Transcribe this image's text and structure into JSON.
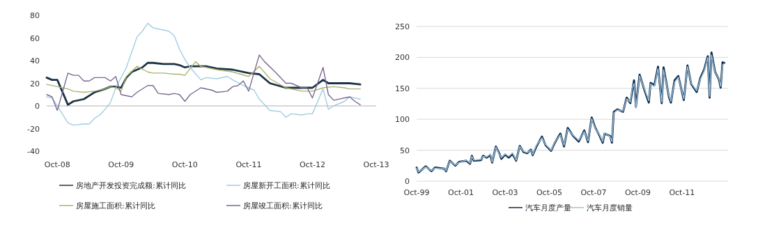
{
  "chart_data": [
    {
      "type": "line",
      "legend": "bottom",
      "xlim": [
        "2008-08",
        "2013-10"
      ],
      "ylim": [
        -40,
        80
      ],
      "yticks": [
        -40,
        -20,
        0,
        20,
        40,
        60,
        80
      ],
      "xticks": [
        {
          "value": "2008-10",
          "label": "Oct-08"
        },
        {
          "value": "2009-10",
          "label": "Oct-09"
        },
        {
          "value": "2010-10",
          "label": "Oct-10"
        },
        {
          "value": "2011-10",
          "label": "Oct-11"
        },
        {
          "value": "2012-10",
          "label": "Oct-12"
        },
        {
          "value": "2013-10",
          "label": "Oct-13"
        }
      ],
      "ref_lines": [
        {
          "axis": "y",
          "value": 0,
          "color": "#b0b0b0"
        }
      ],
      "series": [
        {
          "name": "房地产开发投资完成额:累计同比",
          "color": "#1c3344",
          "x": [
            "2008-08",
            "2008-09",
            "2008-10",
            "2008-12",
            "2009-01",
            "2009-03",
            "2009-04",
            "2009-05",
            "2009-07",
            "2009-08",
            "2009-09",
            "2009-10",
            "2009-11",
            "2009-12",
            "2010-02",
            "2010-03",
            "2010-04",
            "2010-06",
            "2010-08",
            "2010-09",
            "2010-10",
            "2010-11",
            "2011-02",
            "2011-04",
            "2011-07",
            "2011-10",
            "2011-12",
            "2012-02",
            "2012-05",
            "2012-08",
            "2012-10",
            "2012-12",
            "2013-01",
            "2013-05",
            "2013-07"
          ],
          "values": [
            25,
            23,
            23,
            1,
            4,
            6,
            9,
            12,
            15,
            17,
            17,
            16,
            25,
            30,
            34,
            38,
            38,
            37,
            37,
            36,
            34,
            35,
            35,
            33,
            32,
            29,
            28,
            20,
            16,
            16,
            16,
            23,
            20,
            20,
            19
          ]
        },
        {
          "name": "房屋新开工面积:累计同比",
          "color": "#9fcde0",
          "x": [
            "2008-08",
            "2008-09",
            "2008-10",
            "2008-12",
            "2009-01",
            "2009-03",
            "2009-04",
            "2009-05",
            "2009-06",
            "2009-07",
            "2009-08",
            "2009-09",
            "2009-11",
            "2010-01",
            "2010-02",
            "2010-03",
            "2010-04",
            "2010-05",
            "2010-07",
            "2010-08",
            "2010-09",
            "2010-10",
            "2010-11",
            "2011-01",
            "2011-02",
            "2011-04",
            "2011-06",
            "2011-07",
            "2011-09",
            "2011-11",
            "2011-12",
            "2012-02",
            "2012-04",
            "2012-05",
            "2012-06",
            "2012-08",
            "2012-09",
            "2012-10",
            "2012-12",
            "2013-01",
            "2013-02",
            "2013-04",
            "2013-05",
            "2013-06",
            "2013-07"
          ],
          "values": [
            8,
            7,
            0,
            -15,
            -17,
            -16,
            -16,
            -11,
            -8,
            -3,
            3,
            16,
            34,
            61,
            66,
            73,
            69,
            68,
            66,
            62,
            50,
            41,
            34,
            23,
            25,
            24,
            26,
            23,
            18,
            14,
            6,
            -4,
            -5,
            -10,
            -7,
            -8,
            -7,
            -7,
            15,
            -3,
            0,
            4,
            8,
            7,
            6
          ]
        },
        {
          "name": "房屋施工面积:累计同比",
          "color": "#a9b46c",
          "x": [
            "2008-08",
            "2008-10",
            "2008-12",
            "2009-01",
            "2009-03",
            "2009-05",
            "2009-07",
            "2009-08",
            "2009-09",
            "2009-10",
            "2009-11",
            "2010-01",
            "2010-03",
            "2010-04",
            "2010-06",
            "2010-08",
            "2010-09",
            "2010-10",
            "2010-12",
            "2011-01",
            "2011-04",
            "2011-07",
            "2011-10",
            "2011-12",
            "2012-02",
            "2012-05",
            "2012-08",
            "2012-10",
            "2012-12",
            "2013-02",
            "2013-04",
            "2013-05",
            "2013-07"
          ],
          "values": [
            19,
            17,
            15,
            13,
            12,
            13,
            15,
            17,
            16,
            13,
            26,
            35,
            30,
            29,
            29,
            28,
            28,
            27,
            39,
            35,
            32,
            30,
            26,
            35,
            24,
            16,
            13,
            13,
            16,
            17,
            16,
            15,
            15
          ]
        },
        {
          "name": "房屋竣工面积:累计同比",
          "color": "#7c6892",
          "x": [
            "2008-08",
            "2008-09",
            "2008-10",
            "2008-12",
            "2009-01",
            "2009-02",
            "2009-03",
            "2009-04",
            "2009-05",
            "2009-07",
            "2009-08",
            "2009-09",
            "2009-10",
            "2009-12",
            "2010-01",
            "2010-03",
            "2010-04",
            "2010-05",
            "2010-07",
            "2010-08",
            "2010-09",
            "2010-10",
            "2010-11",
            "2011-01",
            "2011-03",
            "2011-04",
            "2011-06",
            "2011-07",
            "2011-08",
            "2011-09",
            "2011-10",
            "2011-12",
            "2012-01",
            "2012-03",
            "2012-05",
            "2012-06",
            "2012-08",
            "2012-09",
            "2012-10",
            "2012-12",
            "2013-01",
            "2013-02",
            "2013-05",
            "2013-06",
            "2013-07"
          ],
          "values": [
            10,
            8,
            -4,
            29,
            27,
            27,
            22,
            22,
            25,
            25,
            22,
            26,
            10,
            8,
            12,
            18,
            18,
            11,
            10,
            11,
            10,
            4,
            10,
            16,
            14,
            12,
            13,
            17,
            18,
            22,
            13,
            45,
            39,
            30,
            20,
            20,
            16,
            16,
            7,
            34,
            10,
            5,
            8,
            4,
            1
          ]
        }
      ]
    },
    {
      "type": "line",
      "legend": "bottom",
      "grid": "y",
      "xlim": [
        "1999-10",
        "2013-11"
      ],
      "ylim": [
        0,
        250
      ],
      "yticks": [
        0,
        50,
        100,
        150,
        200,
        250
      ],
      "xticks": [
        {
          "value": "1999-10",
          "label": "Oct-99"
        },
        {
          "value": "2001-10",
          "label": "Oct-01"
        },
        {
          "value": "2003-10",
          "label": "Oct-03"
        },
        {
          "value": "2005-10",
          "label": "Oct-05"
        },
        {
          "value": "2007-10",
          "label": "Oct-07"
        },
        {
          "value": "2009-10",
          "label": "Oct-09"
        },
        {
          "value": "2011-10",
          "label": "Oct-11"
        }
      ],
      "series": [
        {
          "name": "汽车月度产量",
          "color": "#0e2a47",
          "x": [
            "1999-10",
            "1999-11",
            "2000-03",
            "2000-06",
            "2000-08",
            "2001-01",
            "2001-02",
            "2001-04",
            "2001-07",
            "2001-09",
            "2002-01",
            "2002-03",
            "2002-04",
            "2002-05",
            "2002-09",
            "2002-10",
            "2002-12",
            "2003-02",
            "2003-03",
            "2003-05",
            "2003-07",
            "2003-08",
            "2003-10",
            "2003-12",
            "2004-02",
            "2004-04",
            "2004-06",
            "2004-08",
            "2004-10",
            "2004-12",
            "2005-01",
            "2005-03",
            "2005-06",
            "2005-08",
            "2005-11",
            "2006-01",
            "2006-04",
            "2006-06",
            "2006-08",
            "2006-11",
            "2007-02",
            "2007-05",
            "2007-07",
            "2007-09",
            "2007-11",
            "2008-01",
            "2008-03",
            "2008-04",
            "2008-07",
            "2008-08",
            "2008-09",
            "2008-11",
            "2009-02",
            "2009-04",
            "2009-06",
            "2009-07",
            "2009-08",
            "2009-09",
            "2009-11",
            "2010-02",
            "2010-04",
            "2010-05",
            "2010-07",
            "2010-09",
            "2010-11",
            "2010-12",
            "2011-03",
            "2011-04",
            "2011-06",
            "2011-08",
            "2011-11",
            "2012-01",
            "2012-03",
            "2012-06",
            "2012-08",
            "2012-10",
            "2012-12",
            "2013-01",
            "2013-02",
            "2013-04",
            "2013-06",
            "2013-07",
            "2013-08",
            "2013-09"
          ],
          "values": [
            22,
            14,
            24,
            16,
            22,
            20,
            16,
            33,
            25,
            31,
            33,
            28,
            41,
            33,
            34,
            41,
            38,
            42,
            30,
            56,
            44,
            36,
            43,
            38,
            44,
            33,
            57,
            47,
            45,
            51,
            42,
            56,
            72,
            58,
            49,
            62,
            77,
            56,
            86,
            73,
            64,
            82,
            63,
            103,
            86,
            75,
            62,
            77,
            73,
            62,
            112,
            116,
            112,
            135,
            126,
            146,
            163,
            120,
            172,
            144,
            127,
            159,
            155,
            185,
            126,
            184,
            135,
            127,
            163,
            170,
            131,
            187,
            157,
            144,
            167,
            180,
            202,
            135,
            208,
            176,
            165,
            151,
            192,
            191
          ]
        },
        {
          "name": "汽车月度销量",
          "color": "#9cc3e0",
          "x": [
            "1999-10",
            "1999-11",
            "2000-03",
            "2000-06",
            "2000-08",
            "2001-01",
            "2001-02",
            "2001-04",
            "2001-07",
            "2001-09",
            "2002-01",
            "2002-03",
            "2002-04",
            "2002-05",
            "2002-09",
            "2002-10",
            "2002-12",
            "2003-02",
            "2003-03",
            "2003-05",
            "2003-07",
            "2003-08",
            "2003-10",
            "2003-12",
            "2004-02",
            "2004-04",
            "2004-06",
            "2004-08",
            "2004-10",
            "2004-12",
            "2005-01",
            "2005-03",
            "2005-06",
            "2005-08",
            "2005-11",
            "2006-01",
            "2006-04",
            "2006-06",
            "2006-08",
            "2006-11",
            "2007-02",
            "2007-05",
            "2007-07",
            "2007-09",
            "2007-11",
            "2008-01",
            "2008-03",
            "2008-04",
            "2008-07",
            "2008-08",
            "2008-09",
            "2008-11",
            "2009-02",
            "2009-04",
            "2009-06",
            "2009-07",
            "2009-08",
            "2009-09",
            "2009-11",
            "2010-02",
            "2010-04",
            "2010-05",
            "2010-07",
            "2010-09",
            "2010-11",
            "2010-12",
            "2011-03",
            "2011-04",
            "2011-06",
            "2011-08",
            "2011-11",
            "2012-01",
            "2012-03",
            "2012-06",
            "2012-08",
            "2012-10",
            "2012-12",
            "2013-01",
            "2013-02",
            "2013-04",
            "2013-06",
            "2013-07",
            "2013-08",
            "2013-09"
          ],
          "values": [
            21,
            15,
            23,
            17,
            21,
            20,
            17,
            32,
            26,
            30,
            34,
            29,
            40,
            34,
            35,
            40,
            39,
            44,
            31,
            55,
            43,
            38,
            44,
            40,
            46,
            34,
            56,
            48,
            46,
            50,
            43,
            58,
            70,
            59,
            50,
            63,
            75,
            58,
            84,
            74,
            66,
            80,
            65,
            101,
            85,
            76,
            64,
            78,
            72,
            64,
            110,
            115,
            113,
            133,
            128,
            150,
            158,
            118,
            170,
            146,
            130,
            157,
            153,
            182,
            128,
            180,
            137,
            129,
            160,
            168,
            133,
            185,
            158,
            146,
            165,
            178,
            200,
            137,
            204,
            175,
            166,
            153,
            188,
            190
          ]
        }
      ]
    }
  ]
}
